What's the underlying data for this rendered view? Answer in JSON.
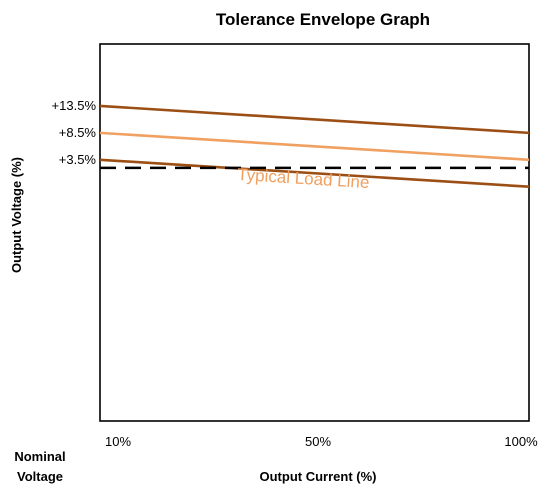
{
  "chart_data": {
    "type": "line",
    "title": "Tolerance Envelope Graph",
    "xlabel": "Output Current (%)",
    "ylabel": "Output Voltage (%)",
    "x_ticks": [
      "10%",
      "50%",
      "100%"
    ],
    "y_ticks": [
      "+13.5%",
      "+8.5%",
      "+3.5%"
    ],
    "y_tick_values": [
      13.5,
      8.5,
      3.5
    ],
    "nominal_label": [
      "Nominal",
      "Voltage"
    ],
    "xlim": [
      10,
      100
    ],
    "ylim": [
      -45,
      25
    ],
    "grid": false,
    "legend": "none",
    "series": [
      {
        "kind": "upper-tolerance",
        "color": "#9C4F14",
        "dash": false,
        "x": [
          10,
          100
        ],
        "y": [
          13.5,
          8.5
        ]
      },
      {
        "name": "Typical Load Line",
        "kind": "typical-load-line",
        "color": "#F0A060",
        "dash": false,
        "x": [
          10,
          100
        ],
        "y": [
          8.5,
          3.5
        ]
      },
      {
        "kind": "lower-tolerance",
        "color": "#9C4F14",
        "dash": false,
        "x": [
          10,
          100
        ],
        "y": [
          3.5,
          -1.5
        ]
      },
      {
        "kind": "nominal-voltage",
        "color": "#000000",
        "dash": true,
        "x": [
          10,
          100
        ],
        "y": [
          2,
          2
        ]
      }
    ]
  }
}
